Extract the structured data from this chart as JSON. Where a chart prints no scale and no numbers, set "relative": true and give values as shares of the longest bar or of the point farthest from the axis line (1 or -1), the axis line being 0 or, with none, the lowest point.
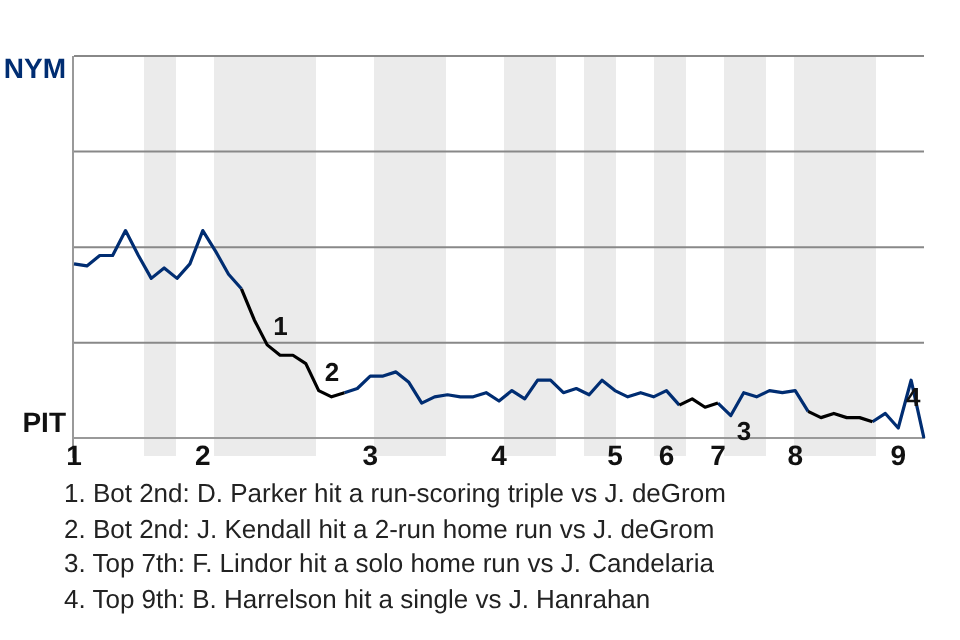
{
  "chart_data": {
    "type": "line",
    "relative": true,
    "categories": [
      "1",
      null,
      null,
      null,
      null,
      null,
      null,
      null,
      null,
      null,
      "2",
      null,
      null,
      null,
      null,
      null,
      null,
      null,
      null,
      null,
      null,
      null,
      null,
      "3",
      null,
      null,
      null,
      null,
      null,
      null,
      null,
      null,
      null,
      "4",
      null,
      null,
      null,
      null,
      null,
      null,
      null,
      null,
      "5",
      null,
      null,
      null,
      "6",
      null,
      null,
      null,
      "7",
      null,
      null,
      null,
      null,
      null,
      "8",
      null,
      null,
      null,
      null,
      null,
      null,
      null,
      "9",
      null,
      null
    ],
    "series": [
      {
        "color": "#002d72",
        "values": [
          0.84,
          0.83,
          0.88,
          0.88,
          1,
          0.88,
          0.77,
          0.82,
          0.77,
          0.84,
          1,
          0.9,
          0.79,
          0.72,
          null,
          null,
          null,
          null,
          null,
          null,
          null,
          0.22,
          0.24,
          0.3,
          0.3,
          0.32,
          0.27,
          0.17,
          0.2,
          0.21,
          0.2,
          0.2,
          0.22,
          0.18,
          0.23,
          0.19,
          0.28,
          0.28,
          0.22,
          0.24,
          0.21,
          0.28,
          0.23,
          0.2,
          0.22,
          0.2,
          0.23,
          0.16,
          null,
          null,
          0.17,
          0.11,
          0.22,
          0.2,
          0.23,
          0.22,
          0.23,
          0.13,
          null,
          null,
          null,
          null,
          0.08,
          0.12,
          0.05,
          0.28,
          0
        ]
      },
      {
        "color": "#000000",
        "values": [
          null,
          null,
          null,
          null,
          null,
          null,
          null,
          null,
          null,
          null,
          null,
          null,
          null,
          0.72,
          0.57,
          0.45,
          0.4,
          0.4,
          0.36,
          0.23,
          0.2,
          0.22,
          null,
          null,
          null,
          null,
          null,
          null,
          null,
          null,
          null,
          null,
          null,
          null,
          null,
          null,
          null,
          null,
          null,
          null,
          null,
          null,
          null,
          null,
          null,
          null,
          null,
          0.16,
          0.19,
          0.15,
          0.17,
          null,
          null,
          null,
          null,
          null,
          null,
          0.13,
          0.1,
          0.12,
          0.1,
          0.1,
          0.08,
          null,
          null,
          null,
          null
        ]
      }
    ],
    "ref_lines": [
      {
        "axis": "y",
        "value": 0.46,
        "color": "#888888"
      },
      {
        "axis": "y",
        "value": 0.92,
        "color": "#888888"
      },
      {
        "axis": "y",
        "value": 1.38,
        "color": "#888888"
      },
      {
        "axis": "y",
        "value": 1.84,
        "color": "#888888"
      }
    ],
    "annotations": [
      "NYM",
      "PIT",
      {
        "text": "1",
        "y": 0.45
      },
      {
        "text": "2",
        "y": 0.23
      },
      {
        "text": "3",
        "y": 0.11
      },
      {
        "text": "4",
        "y": 0.28
      },
      "1. Bot 2nd: D. Parker hit a run-scoring triple vs J. deGrom",
      "2. Bot 2nd: J. Kendall hit a 2-run home run vs J. deGrom",
      "3. Top 7th: F. Lindor hit a solo home run vs J. Candelaria",
      "4. Top 9th: B. Harrelson hit a single vs J. Hanrahan"
    ],
    "legend": false
  }
}
